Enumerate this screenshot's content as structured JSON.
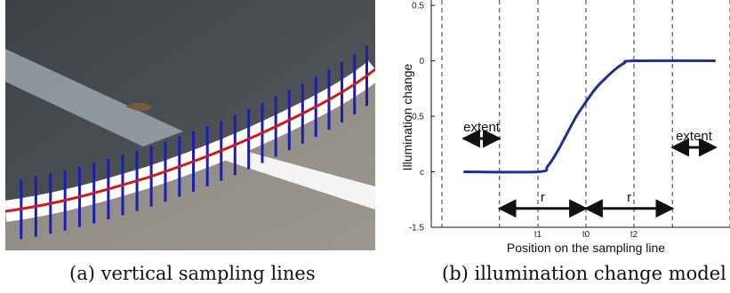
{
  "figure_a": {
    "caption": "(a) vertical sampling lines"
  },
  "chart_data": {
    "type": "line",
    "title": "",
    "xlabel": "Position on the sampling line",
    "ylabel": "Illumination change",
    "ylim": [
      -1.5,
      0.5
    ],
    "y_tick_labels": [
      {
        "value": 0.5,
        "label": "0.5"
      },
      {
        "value": 0,
        "label": "0"
      },
      {
        "value": -0.5,
        "label": "-0.5"
      },
      {
        "value": -1,
        "label": "c"
      },
      {
        "value": -1.5,
        "label": "-1.5"
      }
    ],
    "xlim": [
      -3,
      3
    ],
    "x_tick_labels": [
      {
        "value": -1,
        "label": "t1"
      },
      {
        "value": 0,
        "label": "t0"
      },
      {
        "value": 1,
        "label": "t2"
      }
    ],
    "dashed_guides_x": [
      -3,
      -1.8,
      -1,
      0,
      1,
      1.8,
      3
    ],
    "series": [
      {
        "color": "#1f2f9a",
        "x": [
          -2.55,
          -1.0,
          -0.8,
          -0.6,
          -0.4,
          -0.2,
          0.0,
          0.2,
          0.4,
          0.6,
          0.8,
          1.0,
          2.7
        ],
        "values": [
          -1.0,
          -1.0,
          -0.95,
          -0.82,
          -0.66,
          -0.5,
          -0.37,
          -0.25,
          -0.16,
          -0.08,
          -0.02,
          0.0,
          0.0
        ]
      }
    ],
    "annotations": [
      {
        "text": "extent",
        "from_x": -2.55,
        "to_x": -1.8,
        "y": -0.7
      },
      {
        "text": "extent",
        "from_x": 1.8,
        "to_x": 2.7,
        "y": -0.78
      },
      {
        "text": "r",
        "from_x": -1.8,
        "to_x": 0,
        "y": -1.33
      },
      {
        "text": "r",
        "from_x": 0,
        "to_x": 1.8,
        "y": -1.33
      }
    ],
    "caption": "(b) illumination change model"
  }
}
